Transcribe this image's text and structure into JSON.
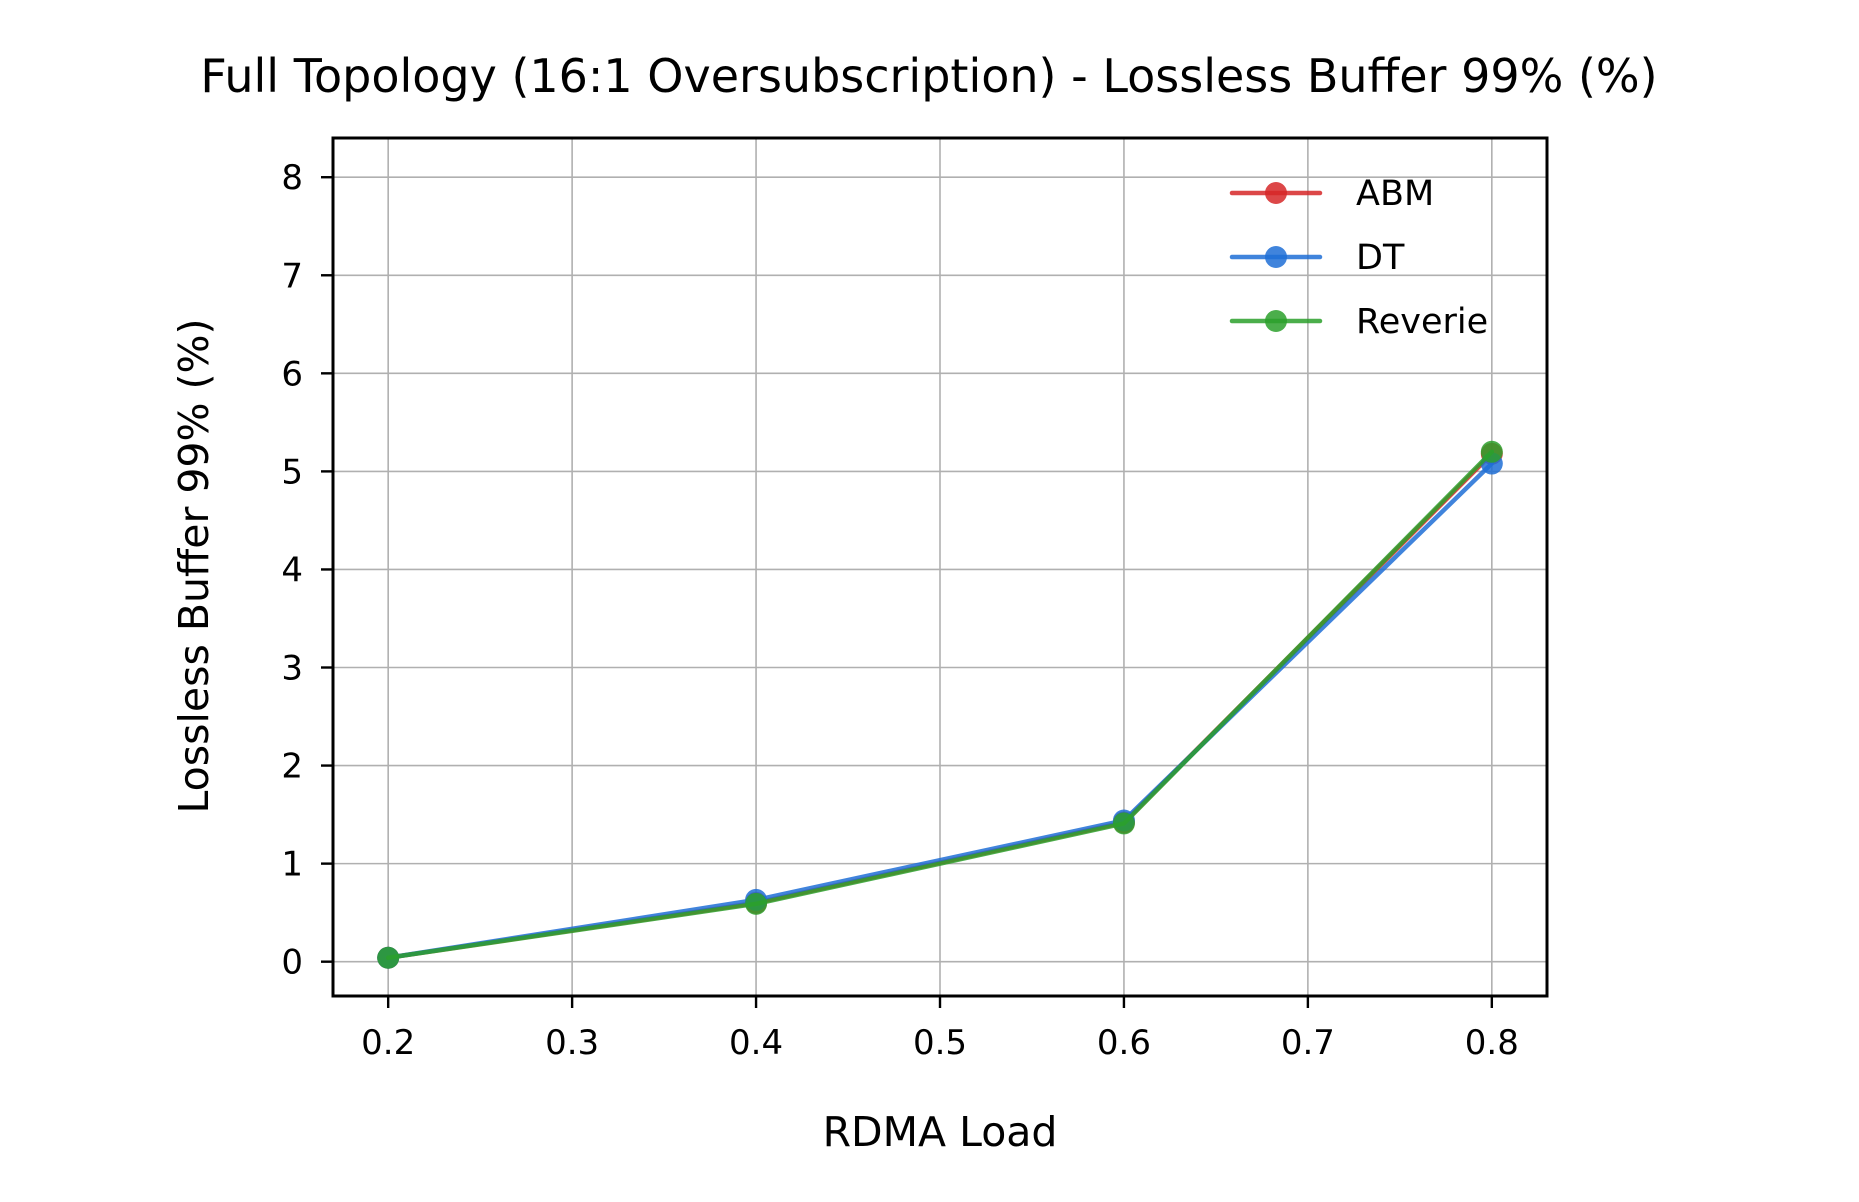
{
  "chart_data": {
    "type": "line",
    "title": "Full Topology (16:1 Oversubscription) - Lossless Buffer 99% (%)",
    "xlabel": "RDMA Load",
    "ylabel": "Lossless Buffer 99% (%)",
    "x": [
      0.2,
      0.4,
      0.6,
      0.8
    ],
    "xlim": [
      0.17,
      0.83
    ],
    "ylim": [
      -0.35,
      8.4
    ],
    "xticks": [
      0.2,
      0.3,
      0.4,
      0.5,
      0.6,
      0.7,
      0.8
    ],
    "xtick_labels": [
      "0.2",
      "0.3",
      "0.4",
      "0.5",
      "0.6",
      "0.7",
      "0.8"
    ],
    "yticks": [
      0,
      1,
      2,
      3,
      4,
      5,
      6,
      7,
      8
    ],
    "ytick_labels": [
      "0",
      "1",
      "2",
      "3",
      "4",
      "5",
      "6",
      "7",
      "8"
    ],
    "grid": true,
    "legend_position": "top-right",
    "series": [
      {
        "name": "ABM",
        "color": "#d62728",
        "values": [
          0.04,
          0.6,
          1.42,
          5.18
        ]
      },
      {
        "name": "DT",
        "color": "#1f6fd6",
        "values": [
          0.04,
          0.63,
          1.44,
          5.08
        ]
      },
      {
        "name": "Reverie",
        "color": "#2ca02c",
        "values": [
          0.04,
          0.59,
          1.41,
          5.2
        ]
      }
    ]
  }
}
